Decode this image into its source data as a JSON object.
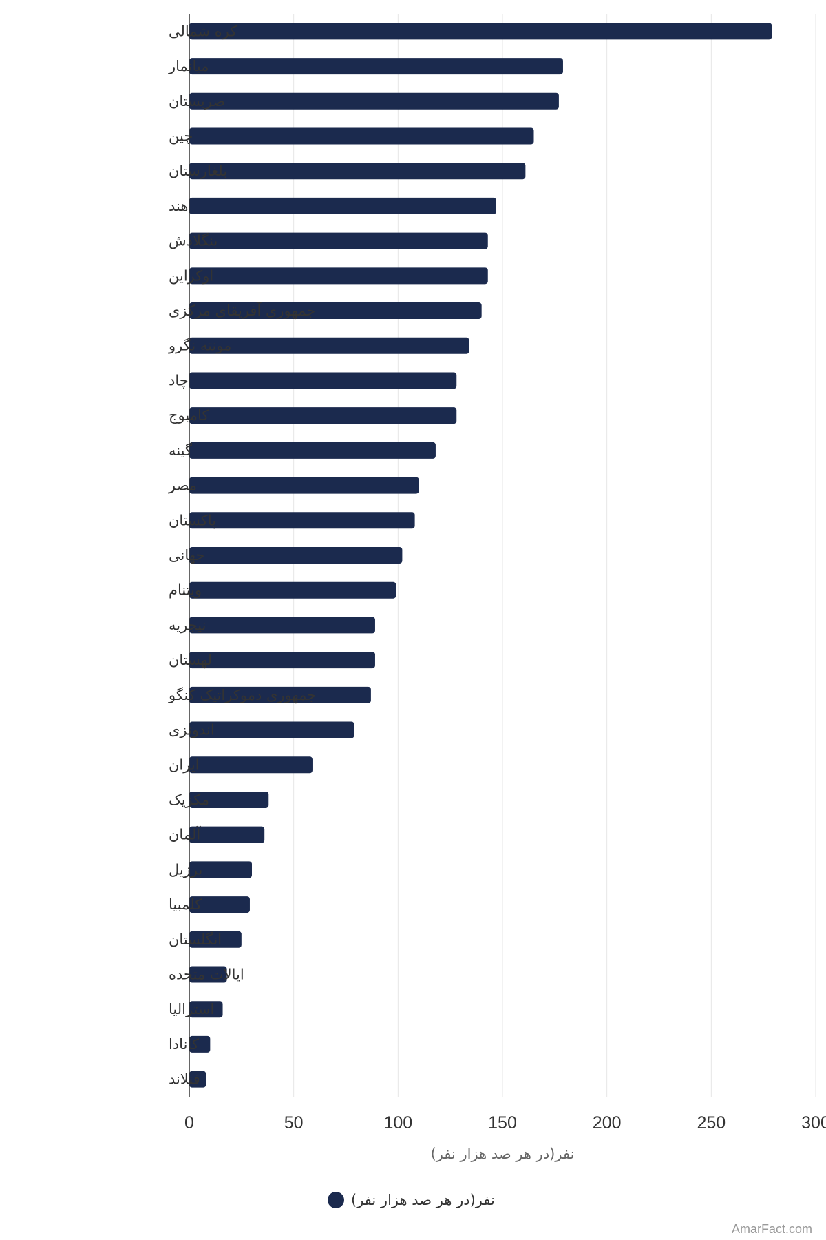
{
  "chart_data": {
    "type": "bar",
    "orientation": "horizontal",
    "categories": [
      "کره شمالی",
      "میانمار",
      "صربستان",
      "چین",
      "بلغارستان",
      "هند",
      "بنگلادش",
      "اوکراین",
      "جمهوری آفریقای مرکزی",
      "مونته نگرو",
      "چاد",
      "کامبوج",
      "گینه",
      "مصر",
      "پاکستان",
      "جهانی",
      "ویتنام",
      "نیجریه",
      "لهستان",
      "جمهوری دموکراتیک کنگو",
      "اندونزی",
      "ایران",
      "مکزیک",
      "آلمان",
      "برزیل",
      "کلمبیا",
      "انگلستان",
      "ایالات متحده",
      "استرالیا",
      "کانادا",
      "فنلاند"
    ],
    "series": [
      {
        "name": "نفر(در هر صد هزار نفر)",
        "values": [
          279,
          179,
          177,
          165,
          161,
          147,
          143,
          143,
          140,
          134,
          128,
          128,
          118,
          110,
          108,
          102,
          99,
          89,
          89,
          87,
          79,
          59,
          38,
          36,
          30,
          29,
          25,
          18,
          16,
          10,
          8
        ]
      }
    ],
    "x_ticks": [
      "0",
      "50",
      "100",
      "150",
      "200",
      "250",
      "300"
    ],
    "xlim": [
      0,
      300
    ],
    "xlabel": "نفر(در هر صد هزار نفر)",
    "ylabel": "",
    "grid": true,
    "legend": "bottom-center",
    "colors": {
      "bar": "#1b2a4e",
      "grid": "#e6e6e6",
      "axis": "#333333"
    }
  },
  "credit": "AmarFact.com"
}
